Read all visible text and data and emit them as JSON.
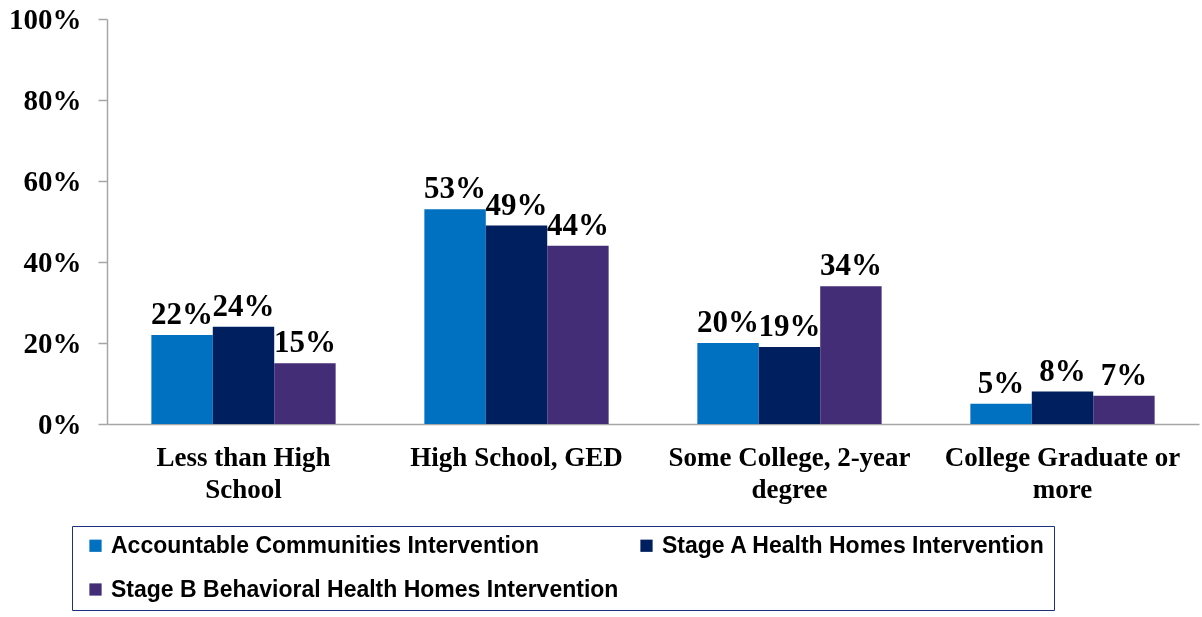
{
  "chart_data": {
    "type": "bar",
    "categories": [
      "Less than High School",
      "High School, GED",
      "Some College, 2-year degree",
      "College Graduate or more"
    ],
    "series": [
      {
        "name": "Accountable Communities Intervention",
        "color": "#0070c0",
        "values": [
          22,
          53,
          20,
          5
        ],
        "value_labels": [
          "22%",
          "53%",
          "20%",
          "5%"
        ]
      },
      {
        "name": "Stage A Health Homes Intervention",
        "color": "#001f5f",
        "values": [
          24,
          49,
          19,
          8
        ],
        "value_labels": [
          "24%",
          "49%",
          "19%",
          "8%"
        ]
      },
      {
        "name": "Stage B Behavioral Health Homes Intervention",
        "color": "#432d77",
        "values": [
          15,
          44,
          34,
          7
        ],
        "value_labels": [
          "15%",
          "44%",
          "34%",
          "7%"
        ]
      }
    ],
    "ylim": [
      0,
      100
    ],
    "yticks": [
      {
        "value": 0,
        "label": "0%"
      },
      {
        "value": 20,
        "label": "20%"
      },
      {
        "value": 40,
        "label": "40%"
      },
      {
        "value": 60,
        "label": "60%"
      },
      {
        "value": 80,
        "label": "80%"
      },
      {
        "value": 100,
        "label": "100%"
      }
    ],
    "grid": false,
    "legend": "bottom"
  }
}
